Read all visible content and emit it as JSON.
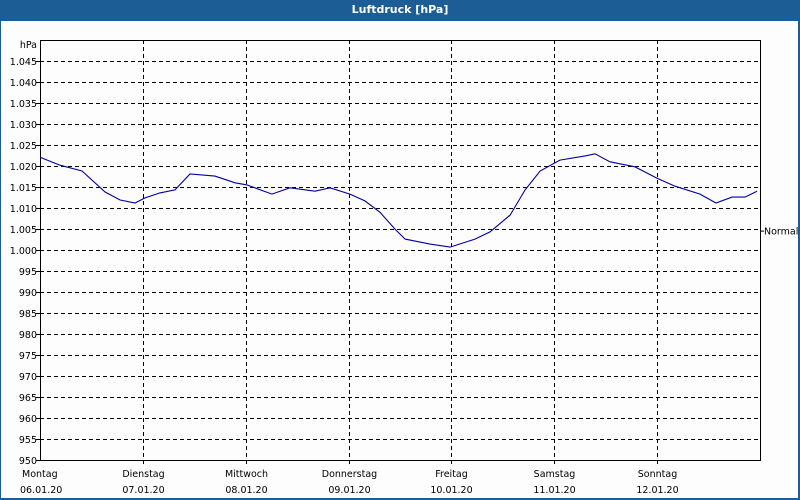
{
  "window": {
    "title": "Luftdruck [hPa]"
  },
  "chart_data": {
    "type": "line",
    "title": "Luftdruck [hPa]",
    "ylabel": "hPa",
    "xlabel": "",
    "ylim": [
      950,
      1050
    ],
    "yticks": [
      950,
      955,
      960,
      965,
      970,
      975,
      980,
      985,
      990,
      995,
      1000,
      1005,
      1010,
      1015,
      1020,
      1025,
      1030,
      1035,
      1040,
      1045
    ],
    "ytick_labels": [
      "950",
      "955",
      "960",
      "965",
      "970",
      "975",
      "980",
      "985",
      "990",
      "995",
      "1.000",
      "1.005",
      "1.010",
      "1.015",
      "1.020",
      "1.025",
      "1.030",
      "1.035",
      "1.040",
      "1.045"
    ],
    "xlim_hours": [
      0,
      168
    ],
    "x_categories": [
      {
        "day": "Montag",
        "date": "06.01.20"
      },
      {
        "day": "Dienstag",
        "date": "07.01.20"
      },
      {
        "day": "Mittwoch",
        "date": "08.01.20"
      },
      {
        "day": "Donnerstag",
        "date": "09.01.20"
      },
      {
        "day": "Freitag",
        "date": "10.01.20"
      },
      {
        "day": "Samstag",
        "date": "11.01.20"
      },
      {
        "day": "Sonntag",
        "date": "12.01.20"
      }
    ],
    "grid": true,
    "annotations": [
      {
        "text": "Normal",
        "value": 1004.5,
        "position": "right"
      }
    ],
    "series": [
      {
        "name": "Luftdruck",
        "color": "#0000a0",
        "x_hours": [
          0,
          4.7,
          9.8,
          15.2,
          18.7,
          22.2,
          24.5,
          28,
          31.5,
          35,
          40.8,
          45.5,
          48.3,
          54.1,
          58.3,
          64.2,
          67.7,
          72.3,
          75.8,
          79.3,
          82.8,
          85.2,
          91,
          95.7,
          101.5,
          105,
          109.7,
          113.2,
          116.7,
          121.3,
          127.2,
          129.5,
          133,
          138.8,
          144,
          148.2,
          154,
          157.7,
          161.5,
          164.5,
          167.3
        ],
        "values": [
          1022.1,
          1020.2,
          1018.8,
          1013.8,
          1011.9,
          1011.2,
          1012.4,
          1013.6,
          1014.3,
          1018.1,
          1017.6,
          1016.0,
          1015.5,
          1013.3,
          1014.8,
          1014.0,
          1014.8,
          1013.3,
          1011.7,
          1009.0,
          1005.0,
          1002.6,
          1001.4,
          1000.7,
          1002.6,
          1004.3,
          1008.3,
          1014.3,
          1018.8,
          1021.4,
          1022.4,
          1022.9,
          1021.0,
          1019.8,
          1017.1,
          1015.2,
          1013.3,
          1011.2,
          1012.6,
          1012.6,
          1014.0
        ]
      }
    ]
  },
  "colors": {
    "frame": "#1b5d94",
    "line": "#0000a0",
    "background": "#fcfdfc"
  }
}
